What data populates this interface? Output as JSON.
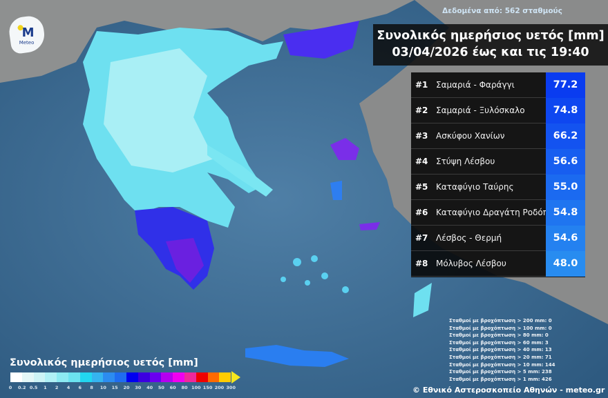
{
  "header": {
    "stations_note": "Δεδομένα από: 562 σταθμούς",
    "title_line1": "Συνολικός ημερήσιος υετός [mm]",
    "title_line2": "03/04/2026 έως και τις 19:40"
  },
  "logo": {
    "text": "Meteo",
    "letter": "M"
  },
  "ranking": [
    {
      "rank": "#1",
      "station": "Σαμαριά - Φαράγγι",
      "value": "77.2"
    },
    {
      "rank": "#2",
      "station": "Σαμαριά - Ξυλόσκαλο",
      "value": "74.8"
    },
    {
      "rank": "#3",
      "station": "Ασκύφου Χανίων",
      "value": "66.2"
    },
    {
      "rank": "#4",
      "station": "Στύψη Λέσβου",
      "value": "56.6"
    },
    {
      "rank": "#5",
      "station": "Καταφύγιο Ταύρης",
      "value": "55.0"
    },
    {
      "rank": "#6",
      "station": "Καταφύγιο Δραγάτη Ροδόπης",
      "value": "54.8"
    },
    {
      "rank": "#7",
      "station": "Λέσβος - Θερμή",
      "value": "54.6"
    },
    {
      "rank": "#8",
      "station": "Μόλυβος Λέσβου",
      "value": "48.0"
    }
  ],
  "stats": [
    "Σταθμοί με βροχόπτωση > 200 mm: 0",
    "Σταθμοί με βροχόπτωση > 100 mm: 0",
    "Σταθμοί με βροχόπτωση > 80 mm: 0",
    "Σταθμοί με βροχόπτωση > 60 mm: 3",
    "Σταθμοί με βροχόπτωση > 40 mm: 13",
    "Σταθμοί με βροχόπτωση > 20 mm: 71",
    "Σταθμοί με βροχόπτωση > 10 mm: 144",
    "Σταθμοί με βροχόπτωση > 5 mm: 238",
    "Σταθμοί με βροχόπτωση > 1 mm: 426"
  ],
  "legend": {
    "title": "Συνολικός ημερήσιος υετός [mm]",
    "ticks": [
      "0",
      "0.2",
      "0.5",
      "1",
      "2",
      "4",
      "6",
      "8",
      "10",
      "15",
      "20",
      "30",
      "40",
      "50",
      "60",
      "80",
      "100",
      "150",
      "200",
      "300"
    ],
    "colors": [
      "#ffffff",
      "#e4f7f7",
      "#cdf3f5",
      "#b0f0f5",
      "#8ceaf2",
      "#6be3f0",
      "#22d6f0",
      "#35b4f0",
      "#2c8cf0",
      "#1f6cf0",
      "#0000f0",
      "#3c00e0",
      "#6a00f0",
      "#b400f0",
      "#f000f0",
      "#f0289c",
      "#f00000",
      "#ff6a00",
      "#ffcc00"
    ]
  },
  "credit": "© Εθνικό Αστεροσκοπείο Αθηνών - meteo.gr",
  "colors": {
    "value_top": "#0a3cf2",
    "value_bottom": "#2a8cf0",
    "sea": "#3d6b92",
    "land": "#9a9a9a"
  }
}
